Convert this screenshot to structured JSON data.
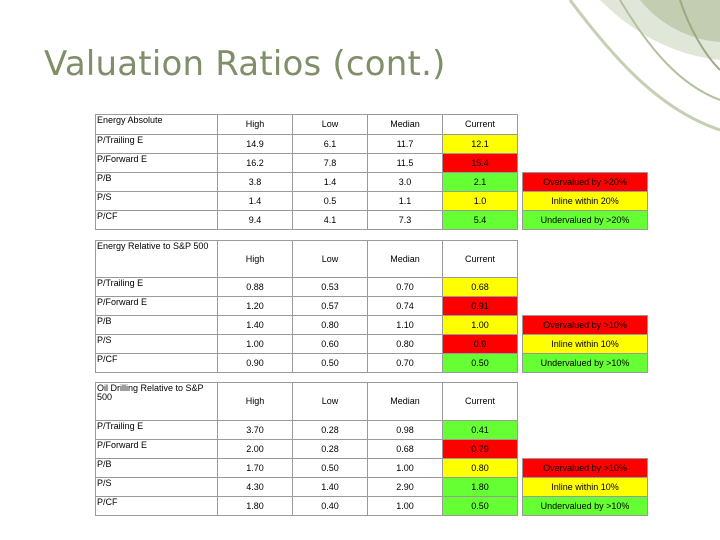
{
  "slide": {
    "title": "Valuation Ratios (cont.)"
  },
  "colors": {
    "title": "#7f8f6a",
    "yellow": "#ffff00",
    "red": "#ff0000",
    "green": "#66ff33",
    "border": "#9a9a9a"
  },
  "tables": [
    {
      "heading": "Energy Absolute",
      "columns": [
        "High",
        "Low",
        "Median",
        "Current"
      ],
      "rows": [
        {
          "label": "P/Trailing E",
          "high": "14.9",
          "low": "6.1",
          "median": "11.7",
          "current": "12.1",
          "status": "yellow"
        },
        {
          "label": "P/Forward E",
          "high": "16.2",
          "low": "7.8",
          "median": "11.5",
          "current": "15.4",
          "status": "red"
        },
        {
          "label": "P/B",
          "high": "3.8",
          "low": "1.4",
          "median": "3.0",
          "current": "2.1",
          "status": "green"
        },
        {
          "label": "P/S",
          "high": "1.4",
          "low": "0.5",
          "median": "1.1",
          "current": "1.0",
          "status": "yellow"
        },
        {
          "label": "P/CF",
          "high": "9.4",
          "low": "4.1",
          "median": "7.3",
          "current": "5.4",
          "status": "green"
        }
      ],
      "legend": [
        "Overvalued by >20%",
        "Inline within 20%",
        "Undervalued by >20%"
      ]
    },
    {
      "heading": "Energy Relative to S&P 500",
      "columns": [
        "High",
        "Low",
        "Median",
        "Current"
      ],
      "rows": [
        {
          "label": "P/Trailing E",
          "high": "0.88",
          "low": "0.53",
          "median": "0.70",
          "current": "0.68",
          "status": "yellow"
        },
        {
          "label": "P/Forward E",
          "high": "1.20",
          "low": "0.57",
          "median": "0.74",
          "current": "0.91",
          "status": "red"
        },
        {
          "label": "P/B",
          "high": "1.40",
          "low": "0.80",
          "median": "1.10",
          "current": "1.00",
          "status": "yellow"
        },
        {
          "label": "P/S",
          "high": "1.00",
          "low": "0.60",
          "median": "0.80",
          "current": "0.9",
          "status": "red"
        },
        {
          "label": "P/CF",
          "high": "0.90",
          "low": "0.50",
          "median": "0.70",
          "current": "0.50",
          "status": "green"
        }
      ],
      "legend": [
        "Overvalued by >10%",
        "Inline within 10%",
        "Undervalued by >10%"
      ]
    },
    {
      "heading": "Oil Drilling Relative to S&P 500",
      "columns": [
        "High",
        "Low",
        "Median",
        "Current"
      ],
      "rows": [
        {
          "label": "P/Trailing E",
          "high": "3.70",
          "low": "0.28",
          "median": "0.98",
          "current": "0.41",
          "status": "green"
        },
        {
          "label": "P/Forward E",
          "high": "2.00",
          "low": "0.28",
          "median": "0.68",
          "current": "0.79",
          "status": "red"
        },
        {
          "label": "P/B",
          "high": "1.70",
          "low": "0.50",
          "median": "1.00",
          "current": "0.80",
          "status": "yellow"
        },
        {
          "label": "P/S",
          "high": "4.30",
          "low": "1.40",
          "median": "2.90",
          "current": "1.80",
          "status": "green"
        },
        {
          "label": "P/CF",
          "high": "1.80",
          "low": "0.40",
          "median": "1.00",
          "current": "0.50",
          "status": "green"
        }
      ],
      "legend": [
        "Overvalued by >10%",
        "Inline within 10%",
        "Undervalued by >10%"
      ]
    }
  ]
}
